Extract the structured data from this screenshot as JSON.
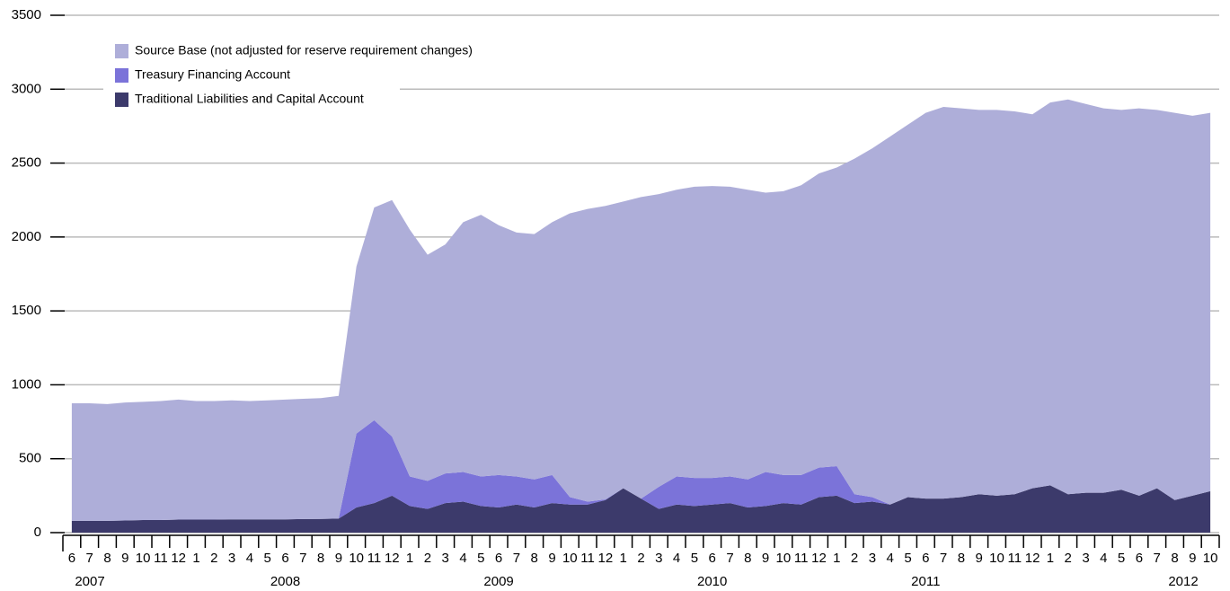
{
  "chart_data": {
    "type": "stacked-area",
    "categories": [
      "6",
      "7",
      "8",
      "9",
      "10",
      "11",
      "12",
      "1",
      "2",
      "3",
      "4",
      "5",
      "6",
      "7",
      "8",
      "9",
      "10",
      "11",
      "12",
      "1",
      "2",
      "3",
      "4",
      "5",
      "6",
      "7",
      "8",
      "9",
      "10",
      "11",
      "12",
      "1",
      "2",
      "3",
      "4",
      "5",
      "6",
      "7",
      "8",
      "9",
      "10",
      "11",
      "12",
      "1",
      "2",
      "3",
      "4",
      "5",
      "6",
      "7",
      "8",
      "9",
      "10",
      "11",
      "12",
      "1",
      "2",
      "3",
      "4",
      "5",
      "6",
      "7",
      "8",
      "9",
      "10"
    ],
    "years": [
      "2007",
      "2008",
      "2009",
      "2010",
      "2011",
      "2012"
    ],
    "series": [
      {
        "name": "Source Base (not adjusted for reserve requirement changes)",
        "color": "#aeaed9",
        "values": [
          795,
          795,
          790,
          798,
          800,
          805,
          812,
          802,
          802,
          805,
          800,
          805,
          810,
          813,
          817,
          830,
          1130,
          1440,
          1600,
          1670,
          1530,
          1550,
          1690,
          1770,
          1690,
          1650,
          1660,
          1710,
          1920,
          1980,
          1985,
          1940,
          2040,
          1980,
          1940,
          1970,
          1975,
          1960,
          1960,
          1890,
          1920,
          1960,
          1990,
          2020,
          2270,
          2360,
          2490,
          2520,
          2610,
          2650,
          2630,
          2600,
          2610,
          2590,
          2530,
          2590,
          2670,
          2630,
          2600,
          2570,
          2620,
          2560,
          2620,
          2570,
          2560
        ]
      },
      {
        "name": "Treasury Financing Account",
        "color": "#7b73d9",
        "values": [
          0,
          0,
          0,
          0,
          0,
          0,
          0,
          0,
          0,
          0,
          0,
          0,
          0,
          0,
          0,
          0,
          500,
          560,
          400,
          200,
          190,
          200,
          200,
          200,
          220,
          190,
          190,
          190,
          50,
          20,
          5,
          0,
          0,
          150,
          190,
          190,
          180,
          180,
          190,
          230,
          190,
          200,
          200,
          200,
          60,
          30,
          0,
          0,
          0,
          0,
          0,
          0,
          0,
          0,
          0,
          0,
          0,
          0,
          0,
          0,
          0,
          0,
          0,
          0,
          0
        ]
      },
      {
        "name": "Traditional Liabilities and Capital Account",
        "color": "#3c3a6b",
        "values": [
          80,
          80,
          80,
          82,
          85,
          85,
          88,
          88,
          88,
          90,
          90,
          90,
          90,
          92,
          93,
          95,
          170,
          200,
          250,
          180,
          160,
          200,
          210,
          180,
          170,
          190,
          170,
          200,
          190,
          190,
          220,
          300,
          230,
          160,
          190,
          180,
          190,
          200,
          170,
          180,
          200,
          190,
          240,
          250,
          200,
          210,
          190,
          240,
          230,
          230,
          240,
          260,
          250,
          260,
          300,
          320,
          260,
          270,
          270,
          290,
          250,
          300,
          220,
          250,
          280
        ]
      }
    ],
    "ylim": [
      0,
      3500
    ],
    "yticks": [
      0,
      500,
      1000,
      1500,
      2000,
      2500,
      3000,
      3500
    ],
    "grid": true,
    "legend": "top-left"
  }
}
